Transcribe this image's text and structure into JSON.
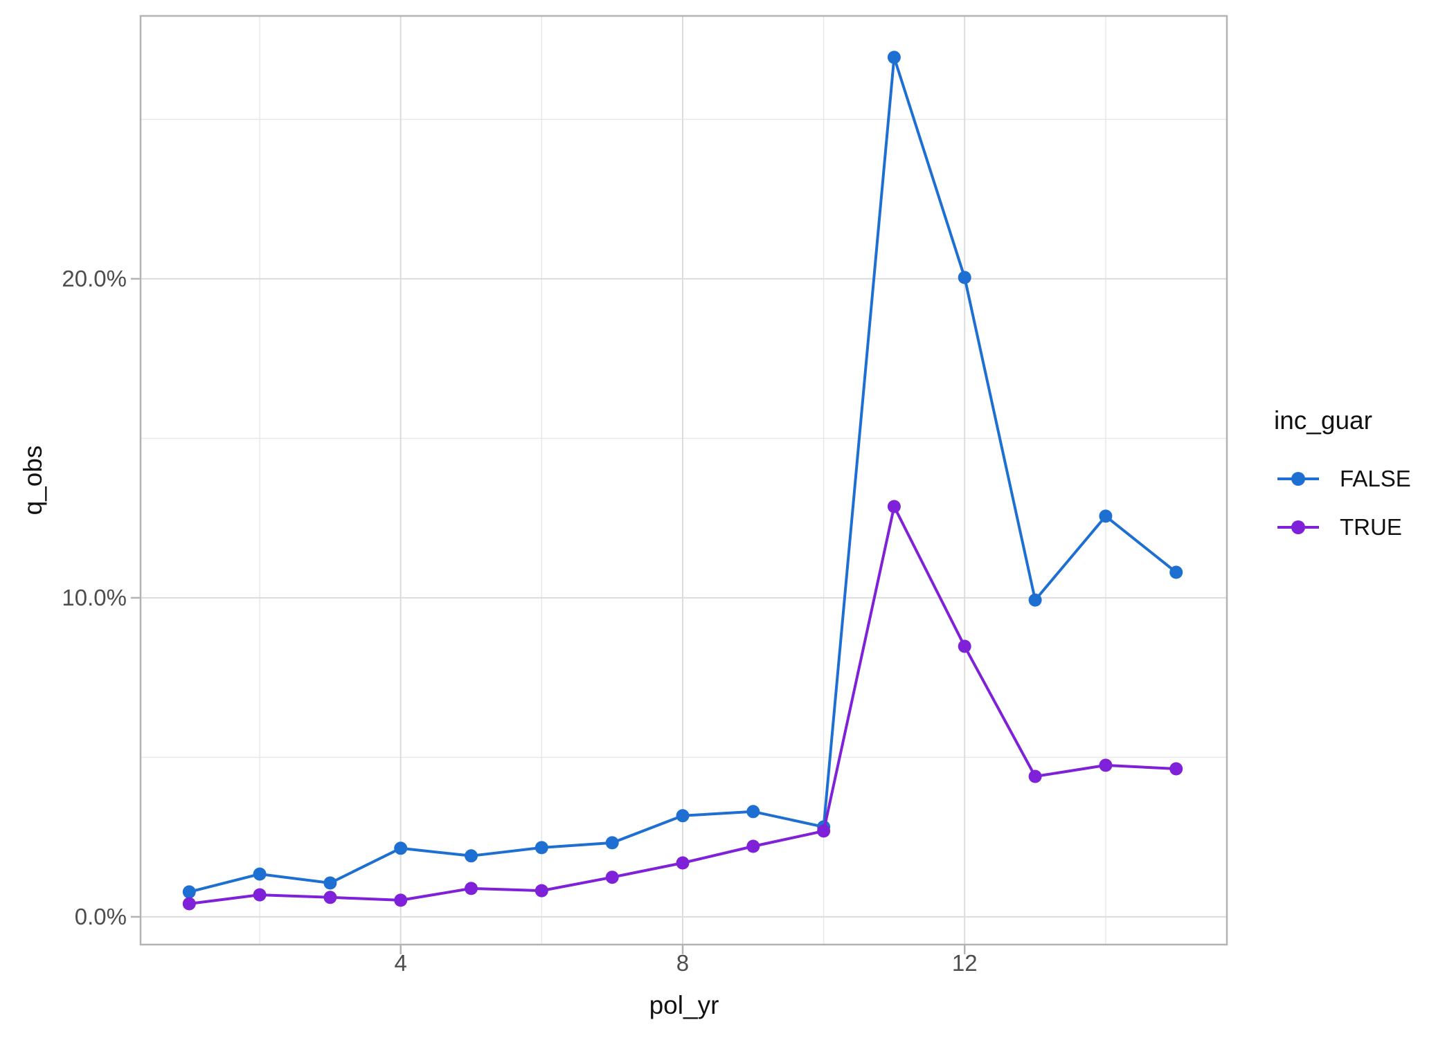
{
  "figure": {
    "background": "#ffffff"
  },
  "legend": {
    "title": "inc_guar",
    "position": "right"
  },
  "chart_data": {
    "type": "line",
    "title": "",
    "xlabel": "pol_yr",
    "ylabel": "q_obs",
    "x": [
      1,
      2,
      3,
      4,
      5,
      6,
      7,
      8,
      9,
      10,
      11,
      12,
      13,
      14,
      15
    ],
    "series": [
      {
        "name": "FALSE",
        "color": "#1e6fd2",
        "values": [
          0.78,
          1.34,
          1.06,
          2.15,
          1.91,
          2.17,
          2.32,
          3.17,
          3.3,
          2.82,
          26.94,
          20.04,
          9.93,
          12.56,
          10.8
        ]
      },
      {
        "name": "TRUE",
        "color": "#7f21d8",
        "values": [
          0.41,
          0.69,
          0.61,
          0.52,
          0.89,
          0.82,
          1.24,
          1.69,
          2.21,
          2.69,
          12.86,
          8.48,
          4.4,
          4.75,
          4.64
        ]
      }
    ],
    "y_unit": "percent",
    "x_ticks": [
      {
        "value": 4,
        "label": "4"
      },
      {
        "value": 8,
        "label": "8"
      },
      {
        "value": 12,
        "label": "12"
      }
    ],
    "x_minor_ticks": [
      2,
      6,
      10,
      14
    ],
    "y_ticks": [
      {
        "value": 0,
        "label": "0.0%"
      },
      {
        "value": 10,
        "label": "10.0%"
      },
      {
        "value": 20,
        "label": "20.0%"
      }
    ],
    "y_minor_ticks": [
      5,
      15,
      25
    ],
    "xlim": [
      0.31,
      15.72
    ],
    "ylim": [
      -0.87,
      28.24
    ],
    "grid": true,
    "legend_position": "right"
  }
}
